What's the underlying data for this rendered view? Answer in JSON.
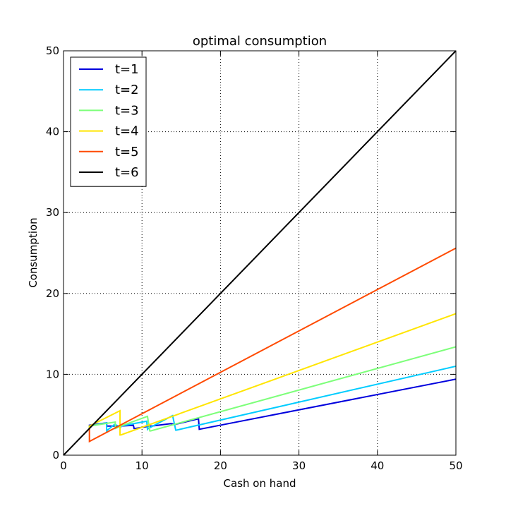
{
  "chart_data": {
    "type": "line",
    "title": "optimal consumption",
    "xlabel": "Cash on hand",
    "ylabel": "Consumption",
    "xlim": [
      0,
      50
    ],
    "ylim": [
      0,
      50
    ],
    "xticks": [
      0,
      10,
      20,
      30,
      40,
      50
    ],
    "yticks": [
      0,
      10,
      20,
      30,
      40,
      50
    ],
    "grid": true,
    "legend_position": "top-left",
    "series": [
      {
        "name": "t=1",
        "color": "#0000dd",
        "x": [
          3.3,
          3.3,
          5.5,
          5.5,
          7.3,
          8.9,
          9.0,
          9.1,
          10.4,
          11.1,
          11.2,
          13.7,
          14.2,
          17.2,
          17.3,
          50
        ],
        "y": [
          3.6,
          3.7,
          4.0,
          3.6,
          3.6,
          3.7,
          3.3,
          3.3,
          3.5,
          3.6,
          3.6,
          3.9,
          3.8,
          4.5,
          3.2,
          9.4
        ]
      },
      {
        "name": "t=2",
        "color": "#00ccff",
        "x": [
          3.3,
          3.3,
          5.5,
          5.5,
          5.6,
          6.5,
          7.3,
          7.3,
          10.6,
          10.7,
          10.8,
          13.9,
          14.3,
          14.4,
          50
        ],
        "y": [
          3.4,
          3.6,
          4.0,
          3.0,
          3.1,
          3.8,
          3.5,
          3.6,
          4.2,
          3.2,
          3.3,
          4.9,
          3.1,
          3.1,
          11.0
        ]
      },
      {
        "name": "t=3",
        "color": "#7dff7a",
        "x": [
          3.3,
          3.3,
          6.6,
          6.6,
          7.3,
          10.7,
          11.0,
          11.1,
          50
        ],
        "y": [
          3.3,
          3.6,
          4.1,
          3.3,
          3.6,
          4.8,
          3.0,
          3.0,
          13.4
        ]
      },
      {
        "name": "t=4",
        "color": "#ffe500",
        "x": [
          3.3,
          3.3,
          7.2,
          7.2,
          7.3,
          50
        ],
        "y": [
          3.3,
          3.6,
          5.5,
          2.5,
          2.5,
          17.5
        ]
      },
      {
        "name": "t=5",
        "color": "#ff4a00",
        "x": [
          3.3,
          3.3,
          50
        ],
        "y": [
          3.3,
          1.7,
          25.6
        ]
      },
      {
        "name": "t=6",
        "color": "#000000",
        "x": [
          0,
          50
        ],
        "y": [
          0,
          50
        ]
      }
    ]
  }
}
